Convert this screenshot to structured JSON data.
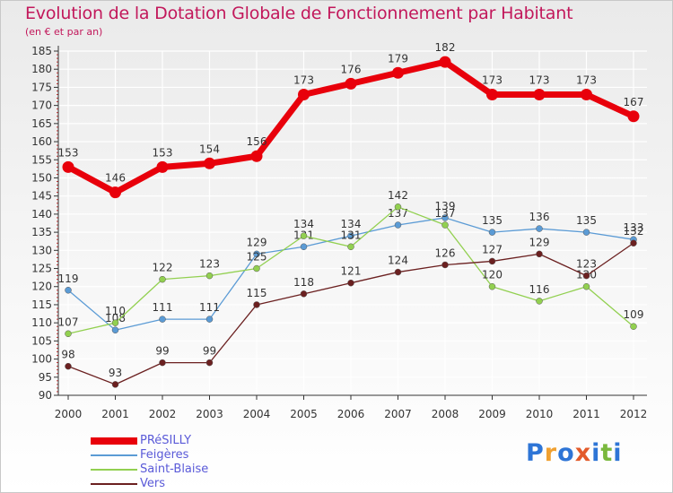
{
  "chart_data": {
    "type": "line",
    "title": "Evolution de la Dotation Globale de Fonctionnement par Habitant",
    "subtitle": "(en € et par an)",
    "categories": [
      "2000",
      "2001",
      "2002",
      "2003",
      "2004",
      "2005",
      "2006",
      "2007",
      "2008",
      "2009",
      "2010",
      "2011",
      "2012"
    ],
    "ylim": [
      90,
      185
    ],
    "yticks": [
      90,
      95,
      100,
      105,
      110,
      115,
      120,
      125,
      130,
      135,
      140,
      145,
      150,
      155,
      160,
      165,
      170,
      175,
      180,
      185
    ],
    "grid": true,
    "legend_position": "bottom-left",
    "series": [
      {
        "name": "PRéSILLY",
        "color": "#e8000b",
        "emphasis": true,
        "values": [
          153,
          146,
          153,
          154,
          156,
          173,
          176,
          179,
          182,
          173,
          173,
          173,
          167
        ]
      },
      {
        "name": "Feigères",
        "color": "#5b9bd5",
        "emphasis": false,
        "values": [
          119,
          108,
          111,
          111,
          129,
          131,
          134,
          137,
          139,
          135,
          136,
          135,
          133
        ]
      },
      {
        "name": "Saint-Blaise",
        "color": "#92d050",
        "emphasis": false,
        "values": [
          107,
          110,
          122,
          123,
          125,
          134,
          131,
          142,
          137,
          120,
          116,
          120,
          109
        ]
      },
      {
        "name": "Vers",
        "color": "#6b2020",
        "emphasis": false,
        "values": [
          98,
          93,
          99,
          99,
          115,
          118,
          121,
          124,
          126,
          127,
          129,
          123,
          132
        ]
      }
    ]
  },
  "logo": {
    "letters": [
      "P",
      "r",
      "o",
      "x",
      "i",
      "t",
      "i"
    ],
    "colors": [
      "#2e75d6",
      "#f0a030",
      "#2e75d6",
      "#e35a2a",
      "#2e75d6",
      "#7ab83d",
      "#2e75d6"
    ]
  }
}
